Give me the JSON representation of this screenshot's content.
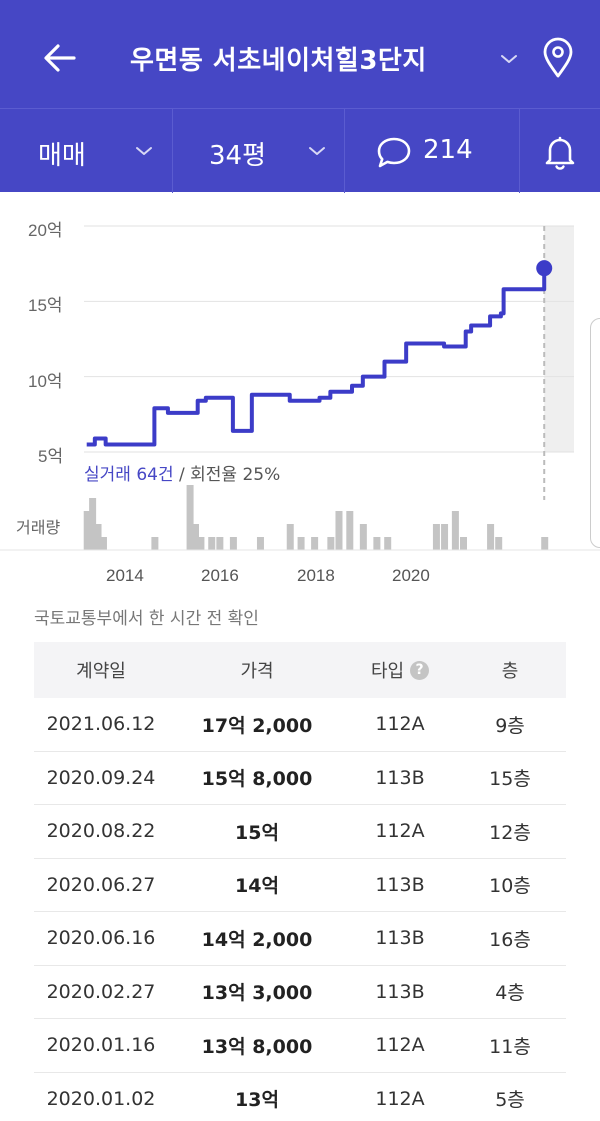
{
  "header": {
    "title": "우면동 서초네이처힐3단지"
  },
  "filters": {
    "trade_type": "매매",
    "area": "34평",
    "comment_count": "214"
  },
  "chart_data": {
    "type": "line",
    "y_axis_label_unit": "억",
    "y_ticks": [
      "20억",
      "15억",
      "10억",
      "5억"
    ],
    "ylim": [
      5,
      20
    ],
    "x_ticks": [
      "2014",
      "2016",
      "2018",
      "2020"
    ],
    "series": [
      {
        "x": [
          2013.0,
          2013.15,
          2013.35,
          2013.6,
          2014.2,
          2014.25,
          2014.5,
          2014.9,
          2015.05,
          2015.2,
          2015.55,
          2015.7,
          2016.0,
          2016.05,
          2016.6,
          2016.75,
          2016.9,
          2017.1,
          2017.3,
          2017.5,
          2017.9,
          2018.1,
          2018.4,
          2018.5,
          2018.6,
          2018.9,
          2019.0,
          2019.5,
          2019.6,
          2020.0,
          2020.1,
          2020.2,
          2020.45,
          2020.65,
          2020.7,
          2021.0,
          2021.45
        ],
        "y": [
          5.5,
          5.9,
          5.5,
          5.5,
          5.5,
          7.9,
          7.6,
          7.6,
          8.4,
          8.6,
          8.6,
          6.4,
          6.4,
          8.8,
          8.8,
          8.4,
          8.4,
          8.4,
          8.6,
          9.0,
          9.4,
          10.0,
          10.0,
          11.0,
          11.0,
          12.2,
          12.2,
          12.2,
          12.0,
          13.0,
          13.4,
          13.4,
          14.0,
          14.2,
          15.8,
          15.8,
          17.2
        ]
      }
    ],
    "grid": true,
    "legend": "none",
    "summary_prefix": "실거래 64건",
    "summary_suffix": " / 회전율 25%",
    "volume_label": "거래량",
    "volume": [
      {
        "x": 2013.0,
        "v": 3
      },
      {
        "x": 2013.1,
        "v": 4
      },
      {
        "x": 2013.2,
        "v": 2
      },
      {
        "x": 2013.3,
        "v": 1
      },
      {
        "x": 2014.25,
        "v": 1
      },
      {
        "x": 2014.9,
        "v": 5
      },
      {
        "x": 2015.0,
        "v": 2
      },
      {
        "x": 2015.1,
        "v": 1
      },
      {
        "x": 2015.3,
        "v": 1
      },
      {
        "x": 2015.45,
        "v": 1
      },
      {
        "x": 2015.7,
        "v": 1
      },
      {
        "x": 2016.2,
        "v": 1
      },
      {
        "x": 2016.75,
        "v": 2
      },
      {
        "x": 2016.95,
        "v": 1
      },
      {
        "x": 2017.2,
        "v": 1
      },
      {
        "x": 2017.5,
        "v": 1
      },
      {
        "x": 2017.65,
        "v": 3
      },
      {
        "x": 2017.85,
        "v": 3
      },
      {
        "x": 2018.1,
        "v": 2
      },
      {
        "x": 2018.35,
        "v": 1
      },
      {
        "x": 2018.55,
        "v": 1
      },
      {
        "x": 2019.45,
        "v": 2
      },
      {
        "x": 2019.6,
        "v": 2
      },
      {
        "x": 2019.8,
        "v": 3
      },
      {
        "x": 2019.95,
        "v": 1
      },
      {
        "x": 2020.45,
        "v": 2
      },
      {
        "x": 2020.6,
        "v": 1
      },
      {
        "x": 2021.45,
        "v": 1
      }
    ]
  },
  "update_note": "국토교통부에서 한 시간 전 확인",
  "table": {
    "headers": {
      "date": "계약일",
      "price": "가격",
      "type": "타입",
      "floor": "층"
    },
    "help_glyph": "?",
    "rows": [
      {
        "date": "2021.06.12",
        "price": "17억 2,000",
        "type": "112A",
        "floor": "9층"
      },
      {
        "date": "2020.09.24",
        "price": "15억 8,000",
        "type": "113B",
        "floor": "15층"
      },
      {
        "date": "2020.08.22",
        "price": "15억",
        "type": "112A",
        "floor": "12층"
      },
      {
        "date": "2020.06.27",
        "price": "14억",
        "type": "113B",
        "floor": "10층"
      },
      {
        "date": "2020.06.16",
        "price": "14억 2,000",
        "type": "113B",
        "floor": "16층"
      },
      {
        "date": "2020.02.27",
        "price": "13억 3,000",
        "type": "113B",
        "floor": "4층"
      },
      {
        "date": "2020.01.16",
        "price": "13억 8,000",
        "type": "112A",
        "floor": "11층"
      },
      {
        "date": "2020.01.02",
        "price": "13억",
        "type": "112A",
        "floor": "5층"
      }
    ]
  },
  "colors": {
    "brand": "#4647c5",
    "line": "#3c3cc8",
    "volume_bar": "#c4c4c4",
    "future_shade": "#efefef"
  },
  "icons": {
    "back": "arrow-left-icon",
    "title_chevron": "chevron-down-icon",
    "map": "map-pin-icon",
    "comment": "speech-bubble-icon",
    "alarm": "bell-icon"
  }
}
